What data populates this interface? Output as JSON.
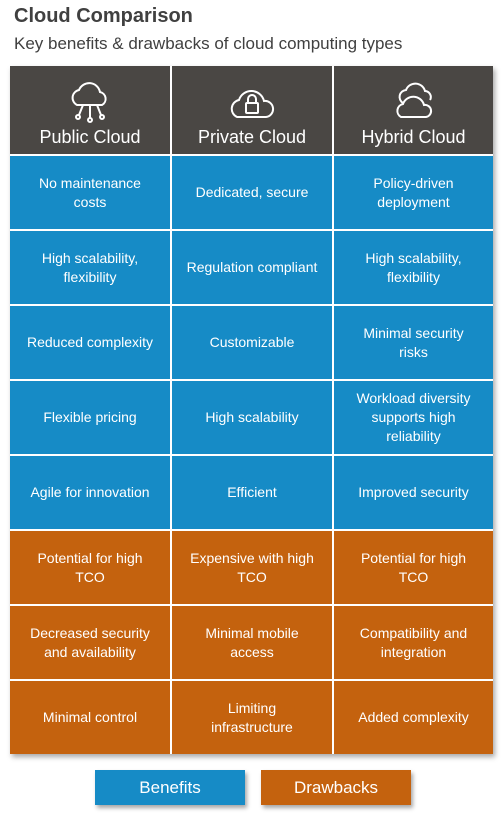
{
  "header": {
    "title": "Cloud Comparison",
    "subtitle": "Key benefits & drawbacks of cloud computing types"
  },
  "table": {
    "columns": [
      "Public Cloud",
      "Private Cloud",
      "Hybrid Cloud"
    ],
    "benefits": [
      [
        "No maintenance costs",
        "Dedicated, secure",
        "Policy-driven deployment"
      ],
      [
        "High scalability, flexibility",
        "Regulation compliant",
        "High scalability, flexibility"
      ],
      [
        "Reduced complexity",
        "Customizable",
        "Minimal security risks"
      ],
      [
        "Flexible pricing",
        "High scalability",
        "Workload diversity supports high reliability"
      ],
      [
        "Agile for innovation",
        "Efficient",
        "Improved security"
      ]
    ],
    "drawbacks": [
      [
        "Potential for high TCO",
        "Expensive with high TCO",
        "Potential for high TCO"
      ],
      [
        "Decreased security and availability",
        "Minimal mobile access",
        "Compatibility and integration"
      ],
      [
        "Minimal control",
        "Limiting infrastructure",
        "Added complexity"
      ]
    ]
  },
  "legend": [
    "Benefits",
    "Drawbacks"
  ]
}
